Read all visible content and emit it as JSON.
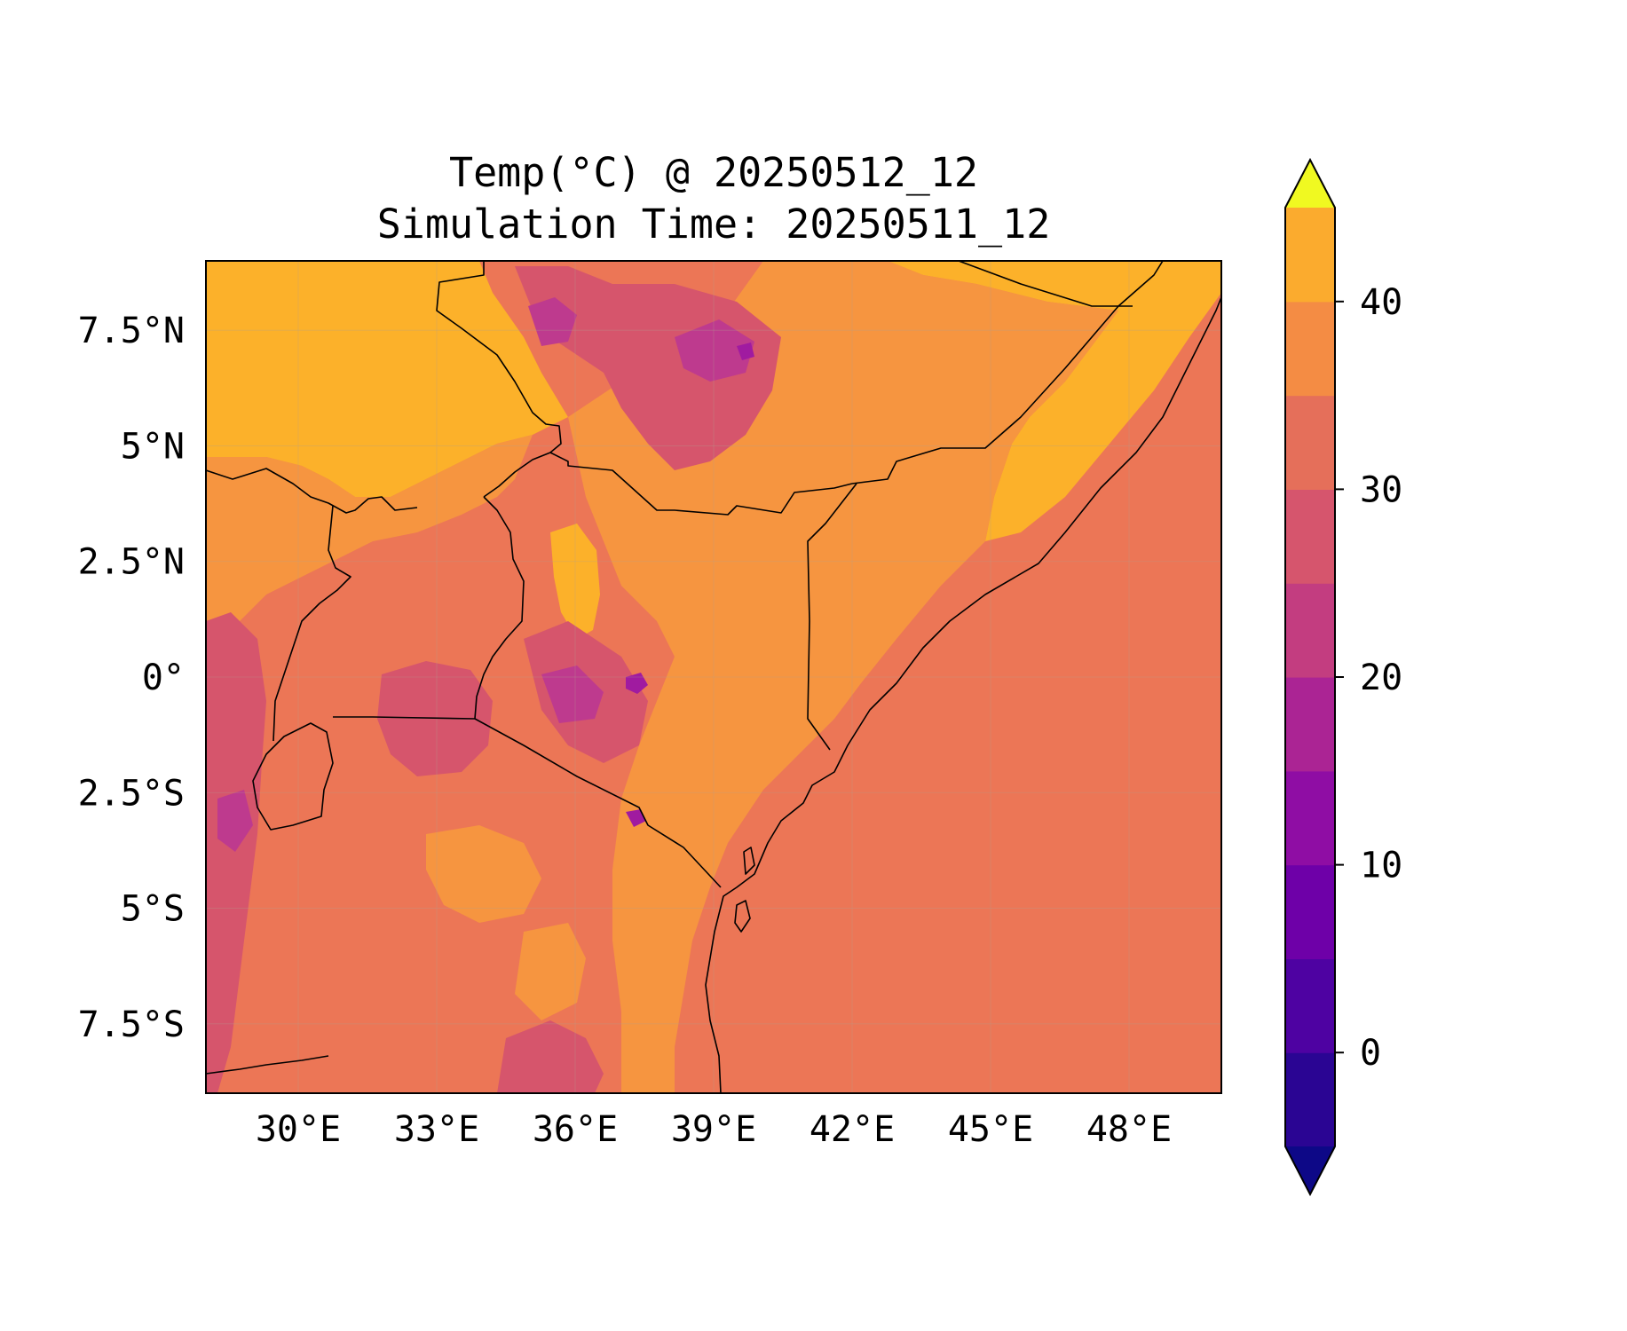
{
  "map": {
    "title_line1": "Temp(°C) @ 20250512_12",
    "title_line2": "Simulation Time: 20250511_12",
    "extent": {
      "lon_min": 28.0,
      "lon_max": 50.0,
      "lat_min": -9.0,
      "lat_max": 9.0
    },
    "x_ticks": [
      {
        "value": 30,
        "label": "30°E"
      },
      {
        "value": 33,
        "label": "33°E"
      },
      {
        "value": 36,
        "label": "36°E"
      },
      {
        "value": 39,
        "label": "39°E"
      },
      {
        "value": 42,
        "label": "42°E"
      },
      {
        "value": 45,
        "label": "45°E"
      },
      {
        "value": 48,
        "label": "48°E"
      }
    ],
    "y_ticks": [
      {
        "value": 7.5,
        "label": "7.5°N"
      },
      {
        "value": 5,
        "label": "5°N"
      },
      {
        "value": 2.5,
        "label": "2.5°N"
      },
      {
        "value": 0,
        "label": "0°"
      },
      {
        "value": -2.5,
        "label": "2.5°S"
      },
      {
        "value": -5,
        "label": "5°S"
      },
      {
        "value": -7.5,
        "label": "7.5°S"
      }
    ],
    "background_color": "#ec7656",
    "colors": {
      "c35_40": "#fcb12a",
      "c30_35": "#f69540",
      "c25_30": "#ec7656",
      "c20_25": "#d6556c",
      "c15_20": "#be3a8e",
      "c10_15": "#a01ba0",
      "c5_10": "#8405a7"
    }
  },
  "colorbar": {
    "extend": "both",
    "min": -5,
    "max": 45,
    "levels": [
      -5,
      0,
      5,
      10,
      15,
      20,
      25,
      30,
      35,
      40,
      45
    ],
    "colors": [
      "#2a0593",
      "#4e02a2",
      "#6e00a8",
      "#8f0da4",
      "#ab2494",
      "#c33d80",
      "#d6556d",
      "#e56f5a",
      "#f48c44",
      "#fbab2e",
      "#f6d02a"
    ],
    "under_color": "#0d0887",
    "over_color": "#f0f921",
    "ticks": [
      {
        "value": 0,
        "label": "0"
      },
      {
        "value": 10,
        "label": "10"
      },
      {
        "value": 20,
        "label": "20"
      },
      {
        "value": 30,
        "label": "30"
      },
      {
        "value": 40,
        "label": "40"
      }
    ]
  }
}
